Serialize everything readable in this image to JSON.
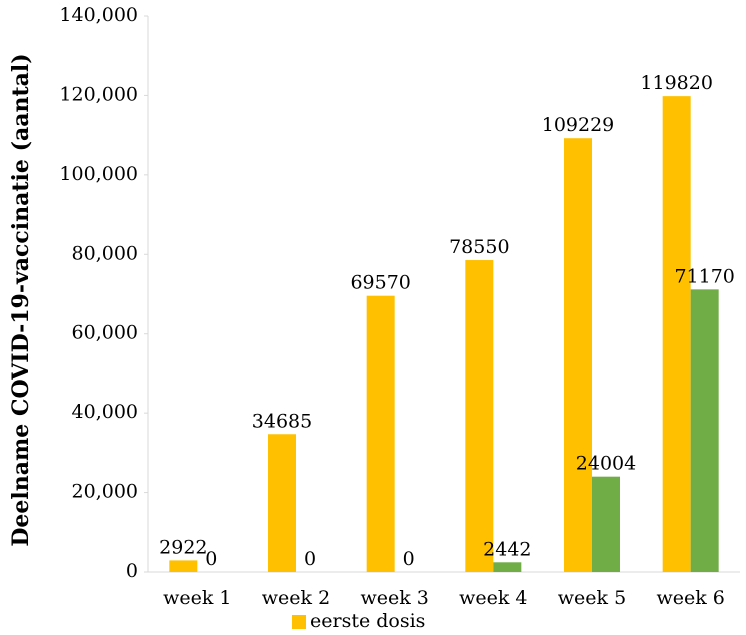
{
  "chart_data": {
    "type": "bar",
    "y_label": "Deelname COVID-19-vaccinatie (aantal)",
    "categories": [
      "week 1",
      "week 2",
      "week 3",
      "week 4",
      "week 5",
      "week 6"
    ],
    "series": [
      {
        "name": "eerste dosis",
        "color": "#ffc000",
        "values": [
          2922,
          34685,
          69570,
          78550,
          109229,
          119820
        ]
      },
      {
        "color": "#70ad47",
        "values": [
          0,
          0,
          0,
          2442,
          24004,
          71170
        ]
      }
    ],
    "ylim": [
      0,
      140000
    ],
    "yticks": [
      0,
      {
        "value": 20000,
        "label": "20,000"
      },
      {
        "value": 40000,
        "label": "40,000"
      },
      {
        "value": 60000,
        "label": "60,000"
      },
      {
        "value": 80000,
        "label": "80,000"
      },
      {
        "value": 100000,
        "label": "100,000"
      },
      {
        "value": 120000,
        "label": "120,000"
      },
      {
        "value": 140000,
        "label": "140,000"
      }
    ],
    "grid": false
  }
}
